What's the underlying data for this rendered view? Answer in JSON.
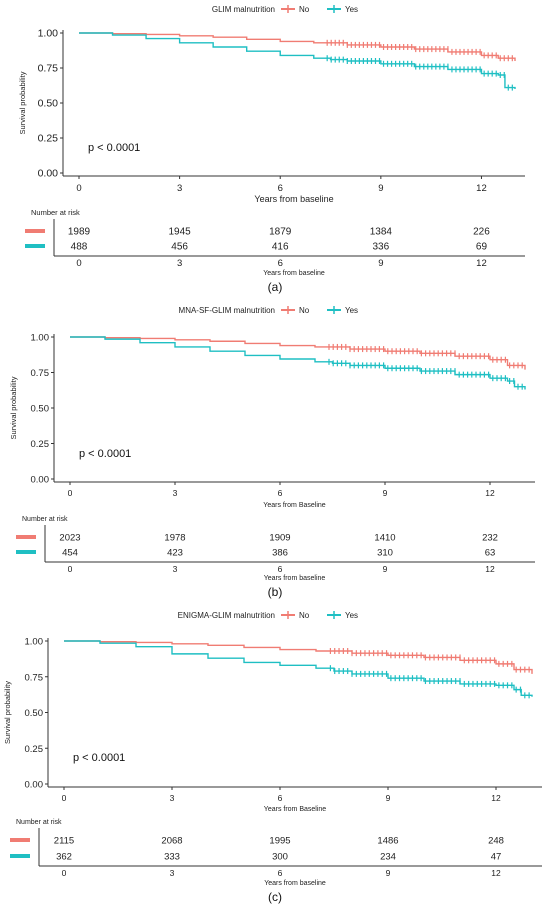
{
  "panels": [
    {
      "caption": "(a)"
    },
    {
      "caption": "(b)"
    },
    {
      "caption": "(c)"
    }
  ],
  "colors": {
    "no": "#F07C73",
    "yes": "#1FBFC3",
    "axis": "#333333",
    "text": "#222222"
  },
  "chart_data": [
    {
      "type": "line",
      "title": "",
      "legend_title": "GLIM malnutrition",
      "legend_position": "top",
      "xlabel": "Years from baseline",
      "ylabel": "Survival probability",
      "xlim": [
        0,
        13
      ],
      "ylim": [
        0,
        1
      ],
      "x_ticks": [
        0,
        3,
        6,
        9,
        12
      ],
      "y_ticks": [
        "0.00",
        "0.25",
        "0.50",
        "0.75",
        "1.00"
      ],
      "grid": false,
      "annotation": "p < 0.0001",
      "series": [
        {
          "name": "No",
          "x": [
            0,
            1,
            2,
            3,
            4,
            5,
            6,
            7,
            8,
            9,
            10,
            11,
            12,
            12.5,
            13
          ],
          "y": [
            1.0,
            0.995,
            0.99,
            0.98,
            0.97,
            0.955,
            0.94,
            0.93,
            0.915,
            0.9,
            0.885,
            0.865,
            0.84,
            0.82,
            0.8
          ]
        },
        {
          "name": "Yes",
          "x": [
            0,
            1,
            2,
            3,
            4,
            5,
            6,
            7,
            7.5,
            8,
            9,
            10,
            11,
            12,
            12.5,
            12.7,
            13
          ],
          "y": [
            1.0,
            0.985,
            0.96,
            0.93,
            0.9,
            0.87,
            0.84,
            0.82,
            0.81,
            0.8,
            0.78,
            0.76,
            0.74,
            0.71,
            0.7,
            0.61,
            0.6
          ]
        }
      ],
      "risk_table": {
        "title": "Number at risk",
        "xlabel": "Years from baseline",
        "rows": [
          {
            "group": "No",
            "values": [
              "1989",
              "1945",
              "1879",
              "1384",
              "226"
            ]
          },
          {
            "group": "Yes",
            "values": [
              "488",
              "456",
              "416",
              "336",
              "69"
            ]
          }
        ]
      }
    },
    {
      "type": "line",
      "title": "",
      "legend_title": "MNA-SF-GLIM malnutrition",
      "legend_position": "top",
      "xlabel": "Years from Baseline",
      "ylabel": "Survival probability",
      "xlim": [
        0,
        13
      ],
      "ylim": [
        0,
        1
      ],
      "x_ticks": [
        0,
        3,
        6,
        9,
        12
      ],
      "y_ticks": [
        "0.00",
        "0.25",
        "0.50",
        "0.75",
        "1.00"
      ],
      "grid": false,
      "annotation": "p < 0.0001",
      "series": [
        {
          "name": "No",
          "x": [
            0,
            1,
            2,
            3,
            4,
            5,
            6,
            7,
            8,
            9,
            10,
            11,
            12,
            12.5,
            13
          ],
          "y": [
            1.0,
            0.995,
            0.99,
            0.98,
            0.97,
            0.955,
            0.94,
            0.93,
            0.915,
            0.9,
            0.885,
            0.865,
            0.84,
            0.8,
            0.77
          ]
        },
        {
          "name": "Yes",
          "x": [
            0,
            1,
            2,
            3,
            4,
            5,
            6,
            7,
            7.5,
            8,
            9,
            10,
            11,
            12,
            12.5,
            12.7,
            13
          ],
          "y": [
            1.0,
            0.985,
            0.96,
            0.93,
            0.9,
            0.87,
            0.845,
            0.825,
            0.815,
            0.8,
            0.78,
            0.76,
            0.735,
            0.71,
            0.69,
            0.65,
            0.63
          ]
        }
      ],
      "risk_table": {
        "title": "Number at risk",
        "xlabel": "Years from baseline",
        "rows": [
          {
            "group": "No",
            "values": [
              "2023",
              "1978",
              "1909",
              "1410",
              "232"
            ]
          },
          {
            "group": "Yes",
            "values": [
              "454",
              "423",
              "386",
              "310",
              "63"
            ]
          }
        ]
      }
    },
    {
      "type": "line",
      "title": "",
      "legend_title": "ENIGMA-GLIM malnutrition",
      "legend_position": "top",
      "xlabel": "Years from Baseline",
      "ylabel": "Survival probability",
      "xlim": [
        0,
        13
      ],
      "ylim": [
        0,
        1
      ],
      "x_ticks": [
        0,
        3,
        6,
        9,
        12
      ],
      "y_ticks": [
        "0.00",
        "0.25",
        "0.50",
        "0.75",
        "1.00"
      ],
      "grid": false,
      "annotation": "p < 0.0001",
      "series": [
        {
          "name": "No",
          "x": [
            0,
            1,
            2,
            3,
            4,
            5,
            6,
            7,
            8,
            9,
            10,
            11,
            12,
            12.5,
            13
          ],
          "y": [
            1.0,
            0.995,
            0.99,
            0.98,
            0.97,
            0.955,
            0.94,
            0.93,
            0.915,
            0.9,
            0.885,
            0.865,
            0.84,
            0.8,
            0.77
          ]
        },
        {
          "name": "Yes",
          "x": [
            0,
            1,
            2,
            3,
            4,
            5,
            6,
            7,
            7.5,
            8,
            9,
            10,
            11,
            12,
            12.5,
            12.7,
            13
          ],
          "y": [
            1.0,
            0.985,
            0.96,
            0.91,
            0.88,
            0.85,
            0.83,
            0.81,
            0.79,
            0.77,
            0.74,
            0.72,
            0.7,
            0.69,
            0.66,
            0.62,
            0.61
          ]
        }
      ],
      "risk_table": {
        "title": "Number at risk",
        "xlabel": "Years from baseline",
        "rows": [
          {
            "group": "No",
            "values": [
              "2115",
              "2068",
              "1995",
              "1486",
              "248"
            ]
          },
          {
            "group": "Yes",
            "values": [
              "362",
              "333",
              "300",
              "234",
              "47"
            ]
          }
        ]
      }
    }
  ]
}
